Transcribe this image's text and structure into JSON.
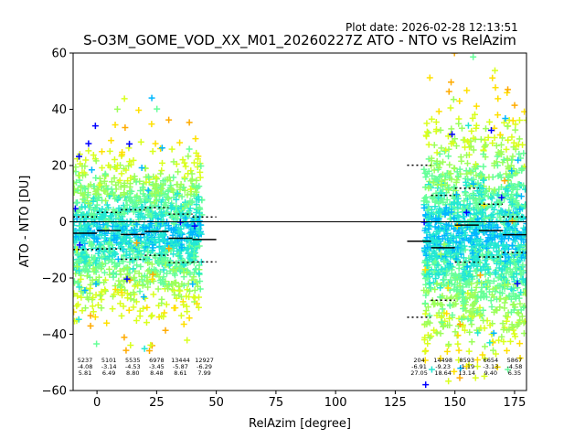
{
  "plot_date_label": "Plot date: 2026-02-28 12:13:51",
  "chart_data": {
    "type": "scatter",
    "title": "S-O3M_GOME_VOD_XX_M01_20260227Z ATO - NTO vs RelAzim",
    "xlabel": "RelAzim [degree]",
    "ylabel": "ATO - NTO [DU]",
    "xlim": [
      -10,
      180
    ],
    "ylim": [
      -60,
      60
    ],
    "xticks": [
      0,
      25,
      50,
      75,
      100,
      125,
      150,
      175
    ],
    "yticks": [
      -60,
      -40,
      -20,
      0,
      20,
      40,
      60
    ],
    "grid": false,
    "marker": "+",
    "colormap": [
      "#0000ff",
      "#00b7ff",
      "#23e8d3",
      "#66ff99",
      "#9cff5a",
      "#d9ff1e",
      "#ffe000",
      "#ffab00"
    ],
    "zero_line": 0,
    "bins": [
      {
        "x_range": [
          -10,
          0
        ],
        "count": "5237",
        "mean": "-4.08",
        "std": "5.81"
      },
      {
        "x_range": [
          0,
          10
        ],
        "count": "5101",
        "mean": "-3.14",
        "std": "6.49"
      },
      {
        "x_range": [
          10,
          20
        ],
        "count": "5535",
        "mean": "-4.53",
        "std": "8.80"
      },
      {
        "x_range": [
          20,
          30
        ],
        "count": "6978",
        "mean": "-3.45",
        "std": "8.48"
      },
      {
        "x_range": [
          30,
          40
        ],
        "count": "13444",
        "mean": "-5.87",
        "std": "8.61"
      },
      {
        "x_range": [
          40,
          50
        ],
        "count": "12927",
        "mean": "-6.29",
        "std": "7.99"
      },
      {
        "x_range": [
          130,
          140
        ],
        "count": "204",
        "mean": "-6.91",
        "std": "27.05"
      },
      {
        "x_range": [
          140,
          150
        ],
        "count": "14498",
        "mean": "-9.23",
        "std": "18.64"
      },
      {
        "x_range": [
          150,
          160
        ],
        "count": "8593",
        "mean": "-1.19",
        "std": "13.14"
      },
      {
        "x_range": [
          160,
          170
        ],
        "count": "6654",
        "mean": "-3.13",
        "std": "9.40"
      },
      {
        "x_range": [
          170,
          180
        ],
        "count": "5867",
        "mean": "-4.58",
        "std": "6.35"
      }
    ],
    "scatter_clusters": [
      {
        "x_range": [
          -10,
          44
        ],
        "y_core": [
          -28,
          20
        ],
        "y_outliers": [
          -46,
          45
        ]
      },
      {
        "x_range": [
          137,
          180
        ],
        "y_core": [
          -40,
          30
        ],
        "y_outliers": [
          -60,
          60
        ]
      }
    ]
  }
}
